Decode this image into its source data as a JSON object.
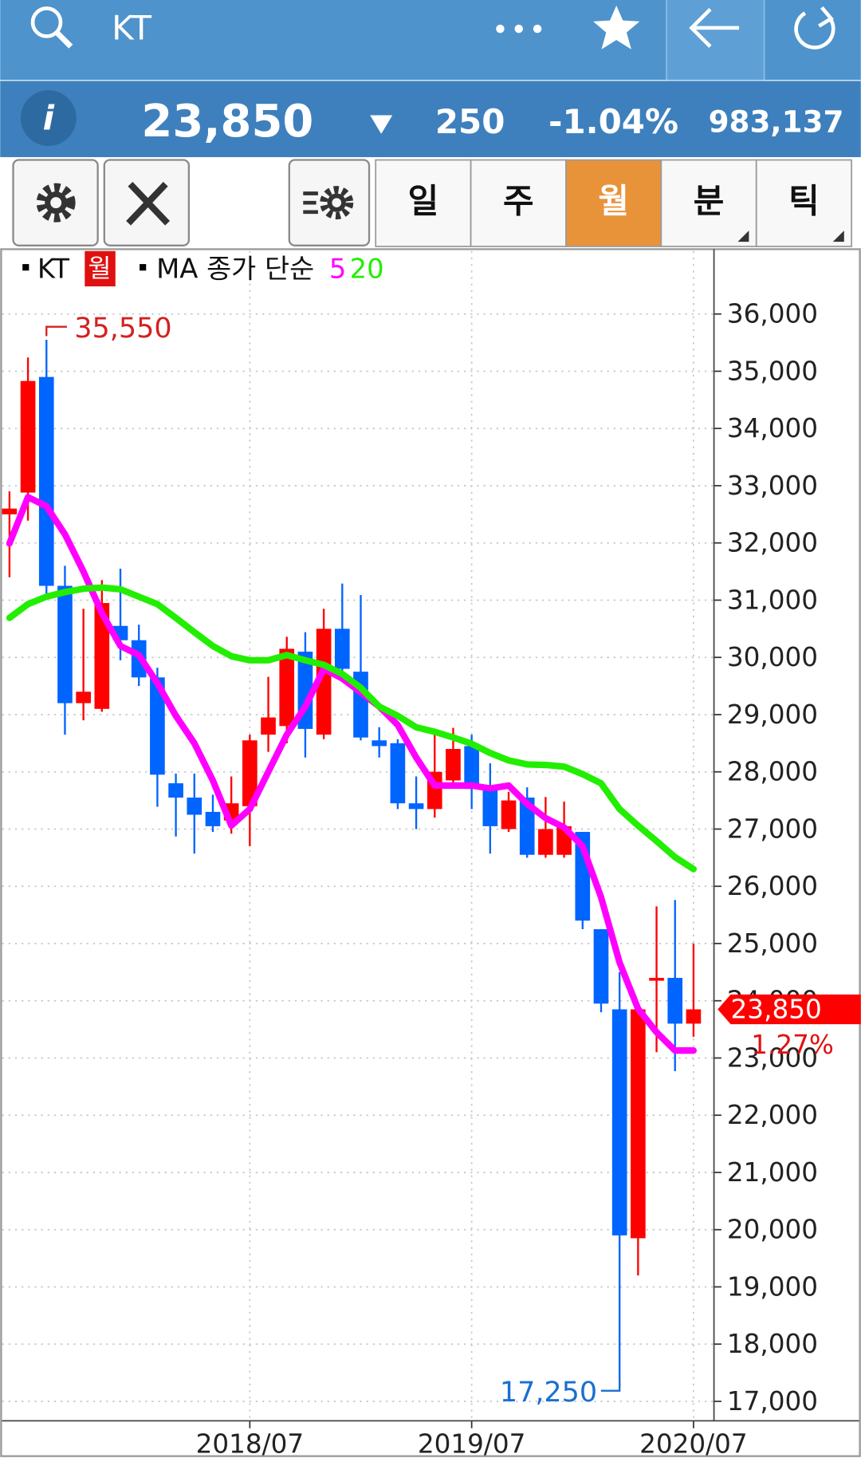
{
  "header": {
    "symbol": "KT"
  },
  "quote": {
    "info_icon": "i",
    "price": "23,850",
    "change": "250",
    "change_pct": "-1.04%",
    "volume": "983,137"
  },
  "toolbar": {
    "tabs": [
      "일",
      "주",
      "월",
      "분",
      "틱"
    ],
    "selected": 2
  },
  "chart_data": {
    "type": "candlestick",
    "categories": [
      null,
      null,
      null,
      null,
      null,
      null,
      null,
      null,
      null,
      null,
      null,
      null,
      null,
      "2018/07",
      null,
      null,
      null,
      null,
      null,
      null,
      null,
      null,
      null,
      null,
      null,
      "2019/07",
      null,
      null,
      null,
      null,
      null,
      null,
      null,
      null,
      null,
      null,
      null,
      "2020/07"
    ],
    "series": [
      {
        "name": "KT",
        "period": "월",
        "up_color": "#ff0000",
        "down_color": "#0064ff",
        "open": [
          32500,
          32880,
          34900,
          31250,
          29200,
          29100,
          30550,
          30300,
          29650,
          27800,
          27550,
          27300,
          27150,
          27400,
          28650,
          28800,
          30100,
          28650,
          30500,
          29750,
          28550,
          28500,
          27450,
          27350,
          27850,
          28450,
          27700,
          27000,
          27550,
          26550,
          26550,
          26950,
          25250,
          23850,
          19850,
          24350,
          24400,
          23600
        ],
        "high": [
          32900,
          35240,
          35550,
          31600,
          30850,
          31350,
          31550,
          30570,
          29820,
          27970,
          27970,
          27600,
          27920,
          28650,
          29660,
          30360,
          30440,
          30850,
          31290,
          31090,
          28780,
          28570,
          27920,
          28650,
          28770,
          28650,
          28150,
          27650,
          27730,
          27560,
          27480,
          26950,
          25250,
          24500,
          23850,
          25650,
          25760,
          25000
        ],
        "low": [
          31400,
          32390,
          31100,
          28650,
          28900,
          29050,
          29950,
          29500,
          27390,
          26870,
          26570,
          26950,
          26920,
          26700,
          28350,
          28500,
          28250,
          28570,
          29600,
          28550,
          28250,
          27350,
          27000,
          27200,
          27750,
          27350,
          26570,
          26950,
          26500,
          26500,
          26500,
          25250,
          23800,
          17250,
          19200,
          23100,
          22770,
          23370
        ],
        "close": [
          32600,
          34830,
          31250,
          29200,
          29400,
          30950,
          30300,
          29650,
          27950,
          27550,
          27250,
          27050,
          27450,
          28550,
          28950,
          30150,
          28750,
          30500,
          29800,
          28600,
          28450,
          27450,
          27350,
          28000,
          28400,
          27700,
          27050,
          27500,
          26550,
          27000,
          27050,
          25400,
          23950,
          19900,
          23850,
          24400,
          23600,
          23850
        ]
      }
    ],
    "overlays": {
      "label": "MA 종가 단순",
      "series": [
        {
          "name": "5",
          "color": "#ff00ff",
          "values": [
            31990,
            32800,
            32640,
            32150,
            31500,
            30770,
            30200,
            30040,
            29550,
            28980,
            28500,
            27850,
            27060,
            27350,
            28000,
            28650,
            29140,
            29800,
            29630,
            29390,
            29140,
            28820,
            28250,
            27760,
            27760,
            27760,
            27710,
            27760,
            27440,
            27190,
            27030,
            26700,
            25810,
            24670,
            23860,
            23450,
            23130,
            23130
          ]
        },
        {
          "name": "20",
          "color": "#22ee00",
          "values": [
            30690,
            30930,
            31060,
            31140,
            31200,
            31220,
            31190,
            31060,
            30930,
            30690,
            30440,
            30200,
            30020,
            29950,
            29950,
            30040,
            29950,
            29870,
            29710,
            29470,
            29140,
            28980,
            28780,
            28700,
            28600,
            28490,
            28330,
            28200,
            28130,
            28120,
            28090,
            27960,
            27800,
            27350,
            27060,
            26790,
            26510,
            26300
          ]
        }
      ]
    },
    "ylim": [
      16660,
      37100
    ],
    "yticks": [
      {
        "value": 17000,
        "label": "17,000"
      },
      {
        "value": 18000,
        "label": "18,000"
      },
      {
        "value": 19000,
        "label": "19,000"
      },
      {
        "value": 20000,
        "label": "20,000"
      },
      {
        "value": 21000,
        "label": "21,000"
      },
      {
        "value": 22000,
        "label": "22,000"
      },
      {
        "value": 23000,
        "label": "23,000"
      },
      {
        "value": 24000,
        "label": "24,000"
      },
      {
        "value": 25000,
        "label": "25,000"
      },
      {
        "value": 26000,
        "label": "26,000"
      },
      {
        "value": 27000,
        "label": "27,000"
      },
      {
        "value": 28000,
        "label": "28,000"
      },
      {
        "value": 29000,
        "label": "29,000"
      },
      {
        "value": 30000,
        "label": "30,000"
      },
      {
        "value": 31000,
        "label": "31,000"
      },
      {
        "value": 32000,
        "label": "32,000"
      },
      {
        "value": 33000,
        "label": "33,000"
      },
      {
        "value": 34000,
        "label": "34,000"
      },
      {
        "value": 35000,
        "label": "35,000"
      },
      {
        "value": 36000,
        "label": "36,000"
      }
    ],
    "grid": true,
    "annotations": [
      {
        "value": 35550,
        "label": "35,550",
        "color": "#d42020"
      },
      {
        "value": 17250,
        "label": "17,250",
        "color": "#1a6fd0"
      }
    ],
    "last_price": {
      "value": 23850,
      "label": "23,850",
      "color": "#ff0000"
    },
    "last_change": "1.27%"
  }
}
